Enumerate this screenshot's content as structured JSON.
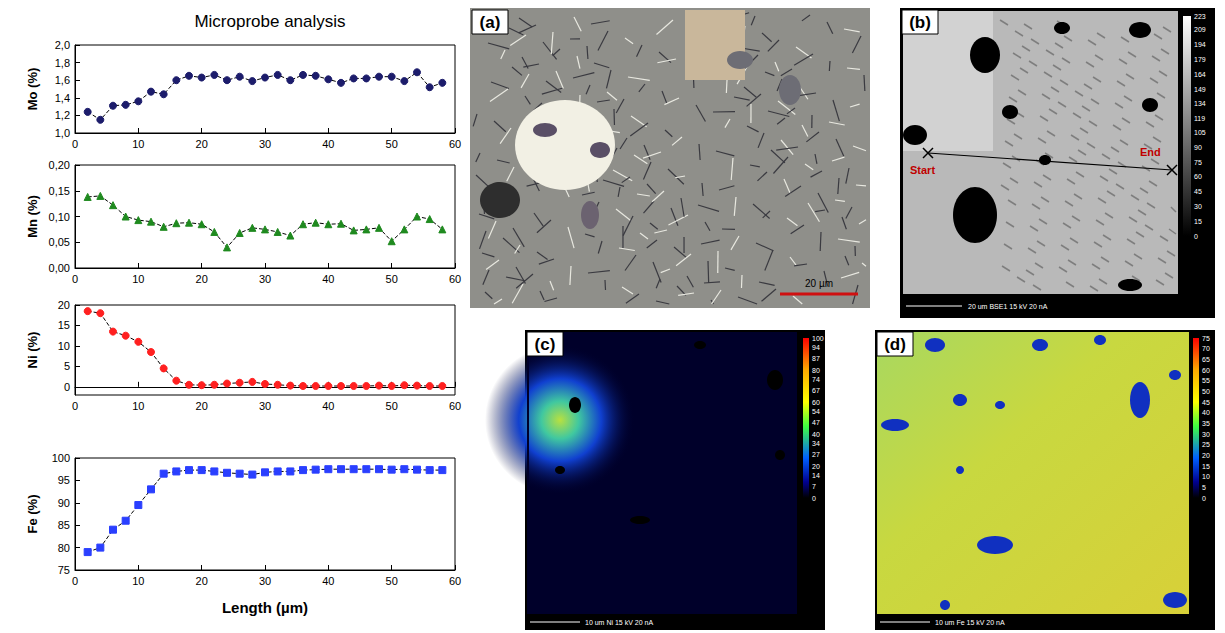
{
  "title": "Microprobe analysis",
  "chart_data": [
    {
      "type": "line",
      "ylabel": "Mo (%)",
      "x": [
        2,
        4,
        6,
        8,
        10,
        12,
        14,
        16,
        18,
        20,
        22,
        24,
        26,
        28,
        30,
        32,
        34,
        36,
        38,
        40,
        42,
        44,
        46,
        48,
        50,
        52,
        54,
        56,
        58
      ],
      "values": [
        1.24,
        1.15,
        1.31,
        1.32,
        1.36,
        1.47,
        1.44,
        1.6,
        1.65,
        1.63,
        1.66,
        1.6,
        1.64,
        1.59,
        1.63,
        1.66,
        1.6,
        1.66,
        1.65,
        1.61,
        1.57,
        1.62,
        1.62,
        1.64,
        1.64,
        1.59,
        1.69,
        1.52,
        1.57
      ],
      "color": "#1c1c6b",
      "marker": "circle",
      "line_style": "dashed",
      "xlim": [
        0,
        60
      ],
      "xticks": [
        0,
        10,
        20,
        30,
        40,
        50,
        60
      ],
      "ylim": [
        1.0,
        2.0
      ],
      "yticks": [
        {
          "value": 1.0,
          "label": "1,0"
        },
        {
          "value": 1.2,
          "label": "1,2"
        },
        {
          "value": 1.4,
          "label": "1,4"
        },
        {
          "value": 1.6,
          "label": "1,6"
        },
        {
          "value": 1.8,
          "label": "1,8"
        },
        {
          "value": 2.0,
          "label": "2,0"
        }
      ],
      "grid": false
    },
    {
      "type": "line",
      "ylabel": "Mn (%)",
      "x": [
        2,
        4,
        6,
        8,
        10,
        12,
        14,
        16,
        18,
        20,
        22,
        24,
        26,
        28,
        30,
        32,
        34,
        36,
        38,
        40,
        42,
        44,
        46,
        48,
        50,
        52,
        54,
        56,
        58
      ],
      "values": [
        0.138,
        0.14,
        0.122,
        0.1,
        0.093,
        0.09,
        0.08,
        0.087,
        0.088,
        0.085,
        0.07,
        0.04,
        0.068,
        0.078,
        0.075,
        0.07,
        0.063,
        0.085,
        0.088,
        0.085,
        0.086,
        0.073,
        0.075,
        0.078,
        0.052,
        0.075,
        0.1,
        0.095,
        0.075
      ],
      "color": "#1f8a1f",
      "marker": "triangle",
      "line_style": "dashed",
      "xlim": [
        0,
        60
      ],
      "xticks": [
        0,
        10,
        20,
        30,
        40,
        50,
        60
      ],
      "ylim": [
        0,
        0.2
      ],
      "yticks": [
        {
          "value": 0,
          "label": "0,00"
        },
        {
          "value": 0.05,
          "label": "0,05"
        },
        {
          "value": 0.1,
          "label": "0,10"
        },
        {
          "value": 0.15,
          "label": "0,15"
        },
        {
          "value": 0.2,
          "label": "0,20"
        }
      ],
      "grid": false
    },
    {
      "type": "line",
      "ylabel": "Ni (%)",
      "x": [
        2,
        4,
        6,
        8,
        10,
        12,
        14,
        16,
        18,
        20,
        22,
        24,
        26,
        28,
        30,
        32,
        34,
        36,
        38,
        40,
        42,
        44,
        46,
        48,
        50,
        52,
        54,
        56,
        58
      ],
      "values": [
        18.5,
        18,
        13.5,
        12.5,
        11,
        8.5,
        4.5,
        1.5,
        0.5,
        0.4,
        0.5,
        0.8,
        1.0,
        1.2,
        0.7,
        0.5,
        0.3,
        0.2,
        0.2,
        0.2,
        0.2,
        0.2,
        0.2,
        0.3,
        0.2,
        0.4,
        0.3,
        0.2,
        0.2
      ],
      "color": "#ff2020",
      "marker": "circle",
      "line_style": "dashed",
      "xlim": [
        0,
        60
      ],
      "xticks": [
        0,
        10,
        20,
        30,
        40,
        50,
        60
      ],
      "ylim": [
        -2,
        20
      ],
      "yticks": [
        0,
        5,
        10,
        15,
        20
      ],
      "grid": false
    },
    {
      "type": "line",
      "ylabel": "Fe (%)",
      "xlabel": "Length (µm)",
      "x": [
        2,
        4,
        6,
        8,
        10,
        12,
        14,
        16,
        18,
        20,
        22,
        24,
        26,
        28,
        30,
        32,
        34,
        36,
        38,
        40,
        42,
        44,
        46,
        48,
        50,
        52,
        54,
        56,
        58
      ],
      "values": [
        79,
        80,
        84,
        86,
        89.5,
        93,
        96.5,
        97,
        97.3,
        97.3,
        97,
        96.7,
        96.5,
        96.3,
        96.8,
        97,
        97,
        97.3,
        97.4,
        97.5,
        97.5,
        97.5,
        97.5,
        97.5,
        97.4,
        97.5,
        97.4,
        97.3,
        97.3
      ],
      "color": "#2a3fff",
      "marker": "square",
      "line_style": "dashed",
      "xlim": [
        0,
        60
      ],
      "xticks": [
        0,
        10,
        20,
        30,
        40,
        50,
        60
      ],
      "ylim": [
        75,
        100
      ],
      "yticks": [
        75,
        80,
        85,
        90,
        95,
        100
      ],
      "grid": false
    }
  ],
  "images": [
    {
      "letter": "(a)",
      "scale_bar": "20 µm"
    },
    {
      "letter": "(b)",
      "start": "Start",
      "end": "End",
      "footer": "20 um BSE1 15 kV 20 nA",
      "colorbar": {
        "range": [
          0,
          223
        ],
        "ticks": [
          223,
          209,
          194,
          179,
          164,
          149,
          134,
          119,
          105,
          90,
          75,
          60,
          45,
          30,
          15,
          0
        ]
      }
    },
    {
      "letter": "(c)",
      "footer": "10 um Ni 15 kV 20 nA",
      "colorbar": {
        "range": [
          0,
          100
        ],
        "ticks": [
          100,
          94,
          87,
          80,
          74,
          67,
          60,
          54,
          47,
          40,
          34,
          27,
          20,
          14,
          7,
          0
        ]
      }
    },
    {
      "letter": "(d)",
      "footer": "10 um Fe 15 kV 20 nA",
      "colorbar": {
        "range": [
          0,
          75
        ],
        "ticks": [
          75,
          70,
          65,
          60,
          55,
          50,
          45,
          40,
          35,
          30,
          25,
          20,
          15,
          10,
          5,
          0
        ]
      }
    }
  ]
}
